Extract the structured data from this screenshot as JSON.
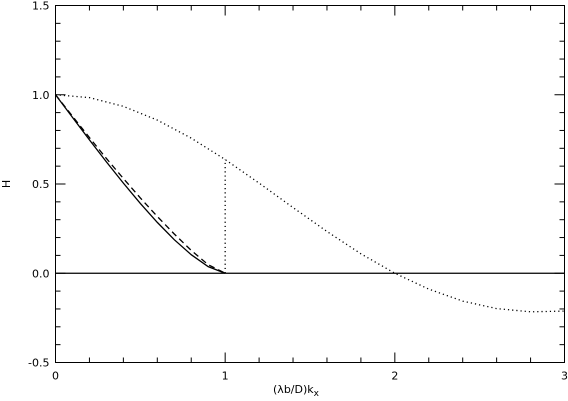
{
  "chart_data": {
    "type": "line",
    "xlabel": "(λb/D)k",
    "xlabel_subscript": "x",
    "ylabel": "H",
    "xlim": [
      0,
      3
    ],
    "ylim": [
      -0.5,
      1.5
    ],
    "x_ticks": [
      "0",
      "1",
      "2",
      "3"
    ],
    "y_ticks": [
      "-0.5",
      "0.0",
      "0.5",
      "1.0",
      "1.5"
    ],
    "x_tick_values": [
      0,
      1,
      2,
      3
    ],
    "y_tick_values": [
      -0.5,
      0.0,
      0.5,
      1.0,
      1.5
    ],
    "grid": false,
    "series": [
      {
        "style": "solid",
        "x": [
          0,
          0.1,
          0.2,
          0.3,
          0.4,
          0.5,
          0.6,
          0.7,
          0.8,
          0.9,
          1.0
        ],
        "y": [
          1.0,
          0.873,
          0.747,
          0.624,
          0.505,
          0.391,
          0.285,
          0.188,
          0.104,
          0.037,
          0.0
        ]
      },
      {
        "style": "dashed",
        "x": [
          0,
          0.1,
          0.2,
          0.3,
          0.4,
          0.5,
          0.6,
          0.7,
          0.8,
          0.9,
          1.0
        ],
        "y": [
          1.0,
          0.88,
          0.76,
          0.643,
          0.531,
          0.422,
          0.318,
          0.22,
          0.128,
          0.048,
          0.0
        ]
      },
      {
        "style": "dotted",
        "x": [
          0,
          0.2,
          0.4,
          0.6,
          0.8,
          1.0,
          1.2,
          1.4,
          1.6,
          1.8,
          2.0,
          2.2,
          2.4,
          2.6,
          2.8,
          3.0
        ],
        "y": [
          1.0,
          0.984,
          0.935,
          0.858,
          0.757,
          0.637,
          0.505,
          0.368,
          0.234,
          0.109,
          0.0,
          -0.089,
          -0.156,
          -0.198,
          -0.216,
          -0.212
        ]
      },
      {
        "style": "dotted",
        "x": [
          1.0,
          1.0
        ],
        "y": [
          0.0,
          0.637
        ]
      },
      {
        "style": "solid",
        "x": [
          0,
          3
        ],
        "y": [
          0.0,
          0.0
        ]
      }
    ]
  }
}
